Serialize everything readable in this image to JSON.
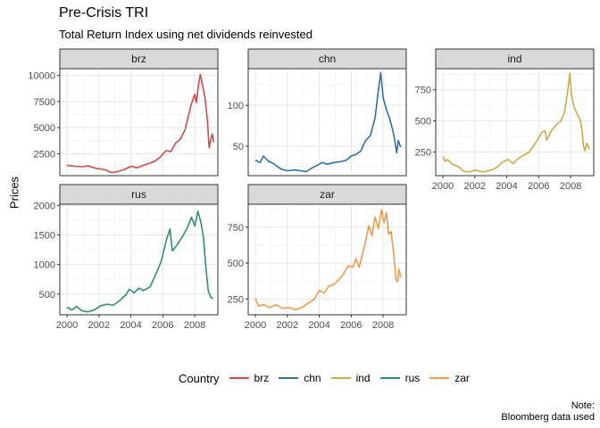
{
  "chart_data": {
    "type": "line",
    "title": "Pre-Crisis TRI",
    "subtitle": "Total Return Index using net dividends reinvested",
    "ylabel": "Prices",
    "xlabel": "",
    "caption": [
      "Note:",
      "Bloomberg data used"
    ],
    "legend": {
      "title": "Country",
      "position": "bottom"
    },
    "grid": true,
    "x_ticks": [
      2000,
      2002,
      2004,
      2006,
      2008
    ],
    "series": [
      {
        "name": "brz",
        "color": "#CC4B4B",
        "xlim": [
          1999.55,
          2009.45
        ],
        "ylim": [
          400,
          10650
        ],
        "y_ticks": [
          2500,
          5000,
          7500,
          10000
        ],
        "points": [
          [
            2000.0,
            1400
          ],
          [
            2000.5,
            1300
          ],
          [
            2001.0,
            1250
          ],
          [
            2001.3,
            1350
          ],
          [
            2001.8,
            1100
          ],
          [
            2002.3,
            1000
          ],
          [
            2002.8,
            700
          ],
          [
            2003.2,
            800
          ],
          [
            2003.6,
            1000
          ],
          [
            2004.0,
            1300
          ],
          [
            2004.4,
            1150
          ],
          [
            2004.8,
            1400
          ],
          [
            2005.2,
            1600
          ],
          [
            2005.5,
            1800
          ],
          [
            2005.8,
            2100
          ],
          [
            2006.2,
            2800
          ],
          [
            2006.5,
            2700
          ],
          [
            2006.8,
            3500
          ],
          [
            2007.1,
            3900
          ],
          [
            2007.4,
            4800
          ],
          [
            2007.6,
            6100
          ],
          [
            2007.8,
            7300
          ],
          [
            2008.0,
            8200
          ],
          [
            2008.1,
            7400
          ],
          [
            2008.25,
            9200
          ],
          [
            2008.35,
            10100
          ],
          [
            2008.5,
            9000
          ],
          [
            2008.65,
            7800
          ],
          [
            2008.8,
            5600
          ],
          [
            2008.9,
            3100
          ],
          [
            2009.0,
            3800
          ],
          [
            2009.1,
            4400
          ],
          [
            2009.2,
            3600
          ]
        ]
      },
      {
        "name": "chn",
        "color": "#2C73A4",
        "xlim": [
          1999.55,
          2009.45
        ],
        "ylim": [
          14,
          145
        ],
        "y_ticks": [
          50,
          100
        ],
        "points": [
          [
            2000.0,
            33
          ],
          [
            2000.3,
            30
          ],
          [
            2000.5,
            38
          ],
          [
            2000.8,
            32
          ],
          [
            2001.2,
            28
          ],
          [
            2001.6,
            22
          ],
          [
            2002.0,
            20
          ],
          [
            2002.5,
            21
          ],
          [
            2002.8,
            20
          ],
          [
            2003.2,
            19
          ],
          [
            2003.5,
            23
          ],
          [
            2003.9,
            27
          ],
          [
            2004.2,
            30
          ],
          [
            2004.5,
            28
          ],
          [
            2004.9,
            30
          ],
          [
            2005.3,
            31
          ],
          [
            2005.7,
            33
          ],
          [
            2006.0,
            38
          ],
          [
            2006.3,
            40
          ],
          [
            2006.6,
            44
          ],
          [
            2006.9,
            57
          ],
          [
            2007.2,
            63
          ],
          [
            2007.5,
            85
          ],
          [
            2007.7,
            118
          ],
          [
            2007.85,
            140
          ],
          [
            2008.0,
            110
          ],
          [
            2008.2,
            95
          ],
          [
            2008.4,
            85
          ],
          [
            2008.6,
            70
          ],
          [
            2008.75,
            55
          ],
          [
            2008.85,
            42
          ],
          [
            2008.95,
            57
          ],
          [
            2009.1,
            49
          ]
        ]
      },
      {
        "name": "ind",
        "color": "#C9AC4B",
        "xlim": [
          1999.55,
          2009.45
        ],
        "ylim": [
          60,
          920
        ],
        "y_ticks": [
          250,
          500,
          750
        ],
        "points": [
          [
            2000.0,
            215
          ],
          [
            2000.15,
            175
          ],
          [
            2000.3,
            190
          ],
          [
            2000.6,
            150
          ],
          [
            2001.0,
            130
          ],
          [
            2001.3,
            95
          ],
          [
            2001.7,
            90
          ],
          [
            2002.0,
            105
          ],
          [
            2002.5,
            90
          ],
          [
            2002.9,
            100
          ],
          [
            2003.3,
            120
          ],
          [
            2003.8,
            175
          ],
          [
            2004.1,
            190
          ],
          [
            2004.4,
            155
          ],
          [
            2004.7,
            195
          ],
          [
            2005.0,
            220
          ],
          [
            2005.4,
            250
          ],
          [
            2005.8,
            320
          ],
          [
            2006.2,
            410
          ],
          [
            2006.4,
            420
          ],
          [
            2006.5,
            345
          ],
          [
            2006.8,
            420
          ],
          [
            2007.1,
            470
          ],
          [
            2007.4,
            500
          ],
          [
            2007.6,
            560
          ],
          [
            2007.8,
            720
          ],
          [
            2007.95,
            880
          ],
          [
            2008.05,
            710
          ],
          [
            2008.2,
            620
          ],
          [
            2008.4,
            560
          ],
          [
            2008.6,
            510
          ],
          [
            2008.7,
            440
          ],
          [
            2008.8,
            300
          ],
          [
            2008.9,
            260
          ],
          [
            2009.0,
            320
          ],
          [
            2009.2,
            270
          ]
        ]
      },
      {
        "name": "rus",
        "color": "#2F8F6C",
        "xlim": [
          1999.55,
          2009.45
        ],
        "ylim": [
          150,
          2020
        ],
        "y_ticks": [
          500,
          1000,
          1500,
          2000
        ],
        "points": [
          [
            2000.0,
            280
          ],
          [
            2000.3,
            230
          ],
          [
            2000.6,
            290
          ],
          [
            2000.9,
            220
          ],
          [
            2001.3,
            200
          ],
          [
            2001.7,
            230
          ],
          [
            2002.1,
            300
          ],
          [
            2002.5,
            330
          ],
          [
            2002.9,
            310
          ],
          [
            2003.3,
            390
          ],
          [
            2003.7,
            490
          ],
          [
            2003.9,
            580
          ],
          [
            2004.2,
            520
          ],
          [
            2004.5,
            600
          ],
          [
            2004.8,
            560
          ],
          [
            2005.2,
            620
          ],
          [
            2005.6,
            860
          ],
          [
            2005.9,
            1050
          ],
          [
            2006.2,
            1390
          ],
          [
            2006.45,
            1600
          ],
          [
            2006.6,
            1230
          ],
          [
            2006.9,
            1330
          ],
          [
            2007.2,
            1460
          ],
          [
            2007.5,
            1600
          ],
          [
            2007.8,
            1800
          ],
          [
            2008.0,
            1650
          ],
          [
            2008.2,
            1900
          ],
          [
            2008.4,
            1700
          ],
          [
            2008.55,
            1450
          ],
          [
            2008.7,
            950
          ],
          [
            2008.85,
            550
          ],
          [
            2009.0,
            450
          ],
          [
            2009.15,
            420
          ]
        ]
      },
      {
        "name": "zar",
        "color": "#F2994A",
        "xlim": [
          1999.55,
          2009.45
        ],
        "ylim": [
          140,
          910
        ],
        "y_ticks": [
          250,
          500,
          750
        ],
        "points": [
          [
            2000.0,
            255
          ],
          [
            2000.2,
            200
          ],
          [
            2000.5,
            210
          ],
          [
            2000.9,
            190
          ],
          [
            2001.3,
            210
          ],
          [
            2001.7,
            185
          ],
          [
            2002.1,
            190
          ],
          [
            2002.5,
            175
          ],
          [
            2002.9,
            190
          ],
          [
            2003.3,
            220
          ],
          [
            2003.7,
            250
          ],
          [
            2004.0,
            310
          ],
          [
            2004.3,
            290
          ],
          [
            2004.6,
            340
          ],
          [
            2004.9,
            350
          ],
          [
            2005.2,
            380
          ],
          [
            2005.5,
            420
          ],
          [
            2005.8,
            480
          ],
          [
            2006.1,
            470
          ],
          [
            2006.3,
            530
          ],
          [
            2006.5,
            470
          ],
          [
            2006.7,
            560
          ],
          [
            2006.9,
            650
          ],
          [
            2007.1,
            760
          ],
          [
            2007.3,
            690
          ],
          [
            2007.5,
            820
          ],
          [
            2007.7,
            740
          ],
          [
            2007.9,
            870
          ],
          [
            2008.05,
            780
          ],
          [
            2008.2,
            850
          ],
          [
            2008.35,
            700
          ],
          [
            2008.5,
            720
          ],
          [
            2008.65,
            580
          ],
          [
            2008.8,
            390
          ],
          [
            2008.9,
            370
          ],
          [
            2009.0,
            460
          ],
          [
            2009.1,
            400
          ]
        ]
      }
    ]
  }
}
